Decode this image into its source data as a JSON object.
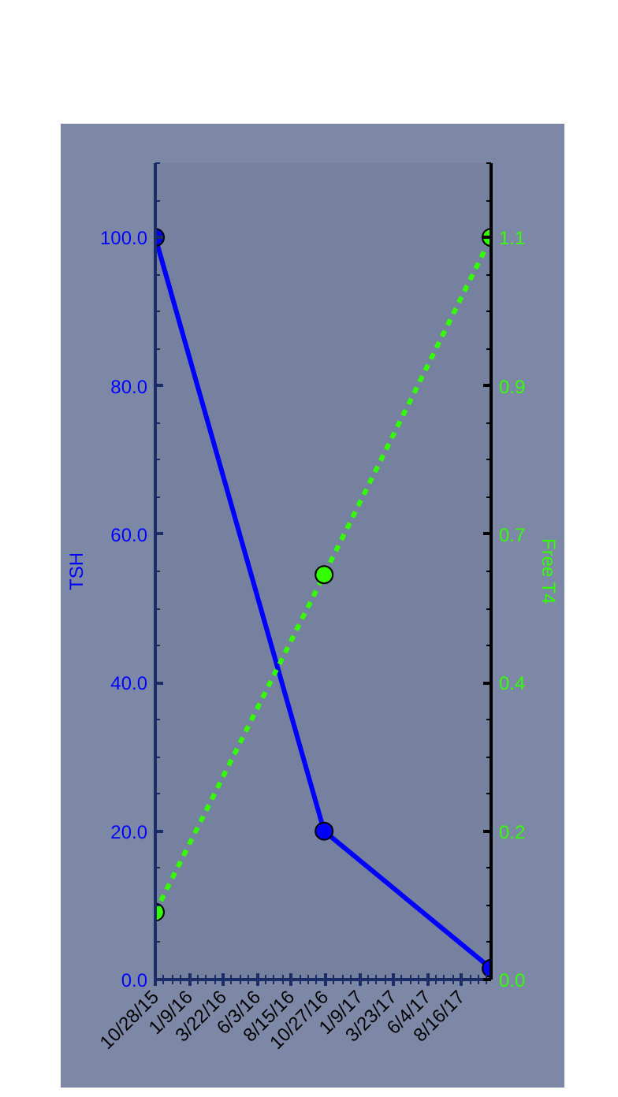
{
  "chart_data": {
    "type": "line",
    "ylabel": "TSH",
    "y2label": "Free T4",
    "x": [
      "2015-10-28",
      "2016-10-25",
      "2017-10-19"
    ],
    "xlim": [
      "2015-10-28",
      "2017-10-19"
    ],
    "xticks": [
      {
        "value": "2015-10-28",
        "label": "10/28/15"
      },
      {
        "value": "2016-01-09",
        "label": "1/9/16"
      },
      {
        "value": "2016-03-22",
        "label": "3/22/16"
      },
      {
        "value": "2016-06-03",
        "label": "6/3/16"
      },
      {
        "value": "2016-08-15",
        "label": "8/15/16"
      },
      {
        "value": "2016-10-27",
        "label": "10/27/16"
      },
      {
        "value": "2017-01-09",
        "label": "1/9/17"
      },
      {
        "value": "2017-03-23",
        "label": "3/23/17"
      },
      {
        "value": "2017-06-04",
        "label": "6/4/17"
      },
      {
        "value": "2017-08-16",
        "label": "8/16/17"
      }
    ],
    "ylim": [
      0,
      110
    ],
    "yticks": [
      {
        "value": 0,
        "label": "0.0"
      },
      {
        "value": 20,
        "label": "20.0"
      },
      {
        "value": 40,
        "label": "40.0"
      },
      {
        "value": 60,
        "label": "60.0"
      },
      {
        "value": 80,
        "label": "80.0"
      },
      {
        "value": 100,
        "label": "100.0"
      }
    ],
    "y2lim": [
      0,
      1.21
    ],
    "y2ticks": [
      {
        "value": 0,
        "label": "0.0"
      },
      {
        "value": 0.22,
        "label": "0.2"
      },
      {
        "value": 0.44,
        "label": "0.4"
      },
      {
        "value": 0.66,
        "label": "0.7"
      },
      {
        "value": 0.88,
        "label": "0.9"
      },
      {
        "value": 1.1,
        "label": "1.1"
      }
    ],
    "marker": "circle",
    "series": [
      {
        "color": "#0000ff",
        "values": [
          100,
          20,
          1.5
        ],
        "line_style": "solid"
      },
      {
        "color": "#33ff00",
        "values": [
          0.1,
          0.6,
          1.1
        ],
        "axis": "y2",
        "line_style": "dashed"
      }
    ]
  }
}
